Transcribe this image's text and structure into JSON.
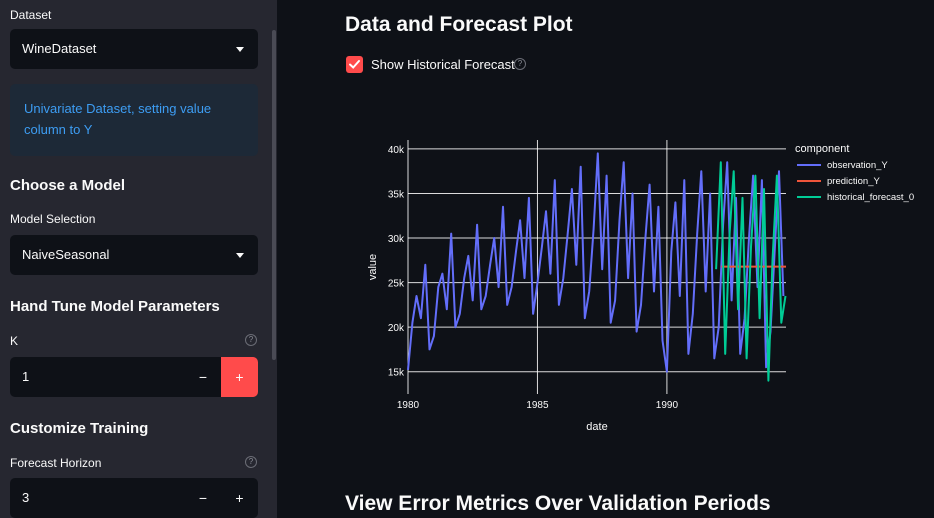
{
  "sidebar": {
    "dataset_label": "Dataset",
    "dataset_value": "WineDataset",
    "info_text": "Univariate Dataset, setting value column to Y",
    "choose_model_heading": "Choose a Model",
    "model_selection_label": "Model Selection",
    "model_value": "NaiveSeasonal",
    "hand_tune_heading": "Hand Tune Model Parameters",
    "k_label": "K",
    "k_value": "1",
    "customize_heading": "Customize Training",
    "forecast_horizon_label": "Forecast Horizon",
    "forecast_horizon_value": "3",
    "minus": "−",
    "plus": "+",
    "help": "?"
  },
  "main": {
    "title": "Data and Forecast Plot",
    "show_hist_label": "Show Historical Forecast",
    "show_hist_checked": true,
    "bottom_title": "View Error Metrics Over Validation Periods"
  },
  "colors": {
    "accent": "#ff4b4b",
    "info_text": "#3d9df3",
    "observation": "#636efa",
    "prediction": "#ef553b",
    "historical": "#00cc96"
  },
  "chart_data": {
    "type": "line",
    "xlabel": "date",
    "ylabel": "value",
    "x_ticks": [
      "1980",
      "1985",
      "1990"
    ],
    "y_ticks": [
      "15k",
      "20k",
      "25k",
      "30k",
      "35k",
      "40k"
    ],
    "xlim": [
      1980,
      1994.6
    ],
    "ylim": [
      12500,
      41000
    ],
    "legend_title": "component",
    "legend_position": "top-right",
    "series": [
      {
        "name": "observation_Y",
        "color": "#636efa",
        "x": [
          1980.0,
          1980.17,
          1980.33,
          1980.5,
          1980.67,
          1980.83,
          1981.0,
          1981.17,
          1981.33,
          1981.5,
          1981.67,
          1981.83,
          1982.0,
          1982.17,
          1982.33,
          1982.5,
          1982.67,
          1982.83,
          1983.0,
          1983.17,
          1983.33,
          1983.5,
          1983.67,
          1983.83,
          1984.0,
          1984.17,
          1984.33,
          1984.5,
          1984.67,
          1984.83,
          1985.0,
          1985.17,
          1985.33,
          1985.5,
          1985.67,
          1985.83,
          1986.0,
          1986.17,
          1986.33,
          1986.5,
          1986.67,
          1986.83,
          1987.0,
          1987.17,
          1987.33,
          1987.5,
          1987.67,
          1987.83,
          1988.0,
          1988.17,
          1988.33,
          1988.5,
          1988.67,
          1988.83,
          1989.0,
          1989.17,
          1989.33,
          1989.5,
          1989.67,
          1989.83,
          1990.0,
          1990.17,
          1990.33,
          1990.5,
          1990.67,
          1990.83,
          1991.0,
          1991.17,
          1991.33,
          1991.5,
          1991.67,
          1991.83,
          1992.0,
          1992.17,
          1992.33,
          1992.5,
          1992.67,
          1992.83,
          1993.0,
          1993.17,
          1993.33,
          1993.5,
          1993.67,
          1993.83,
          1994.0,
          1994.17,
          1994.33,
          1994.5
        ],
        "y": [
          15200,
          20500,
          23500,
          21000,
          27000,
          17500,
          19000,
          24500,
          26000,
          22000,
          30500,
          20000,
          21500,
          25500,
          28000,
          23000,
          31500,
          22000,
          23500,
          27000,
          30000,
          24500,
          33500,
          22500,
          24500,
          28500,
          32000,
          25500,
          34500,
          21500,
          25000,
          29000,
          33000,
          26000,
          36500,
          22500,
          25500,
          30500,
          35500,
          27000,
          38000,
          21000,
          24000,
          31000,
          39500,
          26500,
          37000,
          20500,
          23000,
          32000,
          38500,
          25500,
          35000,
          19500,
          22500,
          30000,
          36000,
          24000,
          33500,
          18500,
          15000,
          28500,
          34000,
          23500,
          36500,
          17000,
          21500,
          30500,
          37500,
          24000,
          35000,
          16500,
          20000,
          31500,
          38500,
          23000,
          34500,
          17000,
          21000,
          30000,
          37000,
          24500,
          36500,
          15500,
          19500,
          29000,
          37500,
          23500
        ]
      },
      {
        "name": "prediction_Y",
        "color": "#ef553b",
        "x": [
          1992.1,
          1994.6
        ],
        "y": [
          26800,
          26800
        ]
      },
      {
        "name": "historical_forecast_0",
        "color": "#00cc96",
        "x": [
          1991.9,
          1992.08,
          1992.25,
          1992.42,
          1992.58,
          1992.75,
          1992.92,
          1993.08,
          1993.25,
          1993.42,
          1993.58,
          1993.75,
          1993.92,
          1994.08,
          1994.25,
          1994.42,
          1994.58
        ],
        "y": [
          26500,
          38500,
          17000,
          30500,
          37500,
          22000,
          34500,
          16500,
          29000,
          37000,
          21000,
          35500,
          14000,
          27500,
          37000,
          20500,
          23500
        ]
      }
    ]
  }
}
